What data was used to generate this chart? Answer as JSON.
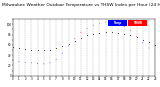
{
  "title": "Milwaukee Weather Outdoor Temperature vs THSW Index per Hour (24 Hours)",
  "title_fontsize": 3.2,
  "background_color": "#ffffff",
  "plot_bg_color": "#ffffff",
  "grid_color": "#888888",
  "xlim": [
    0,
    23
  ],
  "ylim": [
    0,
    110
  ],
  "xticks": [
    0,
    1,
    2,
    3,
    4,
    5,
    6,
    7,
    8,
    9,
    10,
    11,
    12,
    13,
    14,
    15,
    16,
    17,
    18,
    19,
    20,
    21,
    22,
    23
  ],
  "ytick_positions": [
    0,
    10,
    20,
    30,
    40,
    50,
    60,
    70,
    80,
    90,
    100,
    110
  ],
  "ytick_labels": [
    "0",
    "",
    "20",
    "",
    "40",
    "",
    "60",
    "",
    "80",
    "",
    "100",
    ""
  ],
  "temp_hours": [
    0,
    1,
    2,
    3,
    4,
    5,
    6,
    7,
    8,
    9,
    10,
    11,
    12,
    13,
    14,
    15,
    16,
    17,
    18,
    19,
    20,
    21,
    22,
    23
  ],
  "temp_values": [
    55,
    53,
    51,
    50,
    49,
    49,
    50,
    53,
    57,
    62,
    68,
    74,
    79,
    82,
    84,
    85,
    85,
    84,
    82,
    79,
    75,
    70,
    65,
    60
  ],
  "thsw_hours": [
    0,
    1,
    2,
    3,
    4,
    5,
    6,
    7,
    8,
    9,
    10,
    11,
    12,
    13,
    14,
    15,
    16,
    17,
    18,
    19,
    20,
    21,
    22,
    23
  ],
  "thsw_values": [
    30,
    28,
    26,
    25,
    24,
    23,
    25,
    32,
    44,
    58,
    72,
    84,
    92,
    98,
    102,
    104,
    104,
    102,
    96,
    88,
    76,
    64,
    54,
    44
  ],
  "temp_dot_color": "#000000",
  "thsw_dot_color": "#ff0000",
  "thsw_low_color": "#0000ff",
  "legend_temp_color": "#0000ff",
  "legend_thsw_color": "#ff0000",
  "legend_label_temp": "Temp",
  "legend_label_thsw": "THSW"
}
